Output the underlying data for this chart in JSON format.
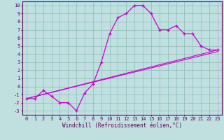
{
  "xlabel": "Windchill (Refroidissement éolien,°C)",
  "bg_color": "#c0e0e0",
  "grid_color": "#90c0c0",
  "line_color": "#cc00cc",
  "spine_color": "#660066",
  "xlim": [
    -0.5,
    23.5
  ],
  "ylim": [
    -3.5,
    10.5
  ],
  "xticks": [
    0,
    1,
    2,
    3,
    4,
    5,
    6,
    7,
    8,
    9,
    10,
    11,
    12,
    13,
    14,
    15,
    16,
    17,
    18,
    19,
    20,
    21,
    22,
    23
  ],
  "yticks": [
    -3,
    -2,
    -1,
    0,
    1,
    2,
    3,
    4,
    5,
    6,
    7,
    8,
    9,
    10
  ],
  "curve1_x": [
    0,
    1,
    2,
    3,
    4,
    5,
    6,
    7,
    8,
    9,
    10,
    11,
    12,
    13,
    14,
    15,
    16,
    17,
    18,
    19,
    20,
    21,
    22,
    23
  ],
  "curve1_y": [
    -1.5,
    -1.5,
    -0.5,
    -1.2,
    -2.0,
    -2.0,
    -3.0,
    -0.8,
    0.3,
    3.0,
    6.5,
    8.5,
    9.0,
    10.0,
    10.0,
    9.0,
    7.0,
    7.0,
    7.5,
    6.5,
    6.5,
    5.0,
    4.5,
    4.5
  ],
  "curve2_x": [
    0,
    23
  ],
  "curve2_y": [
    -1.5,
    4.5
  ],
  "curve3_x": [
    0,
    23
  ],
  "curve3_y": [
    -1.5,
    4.3
  ],
  "tick_fontsize": 5.0,
  "xlabel_fontsize": 5.5,
  "label_color": "#660066"
}
